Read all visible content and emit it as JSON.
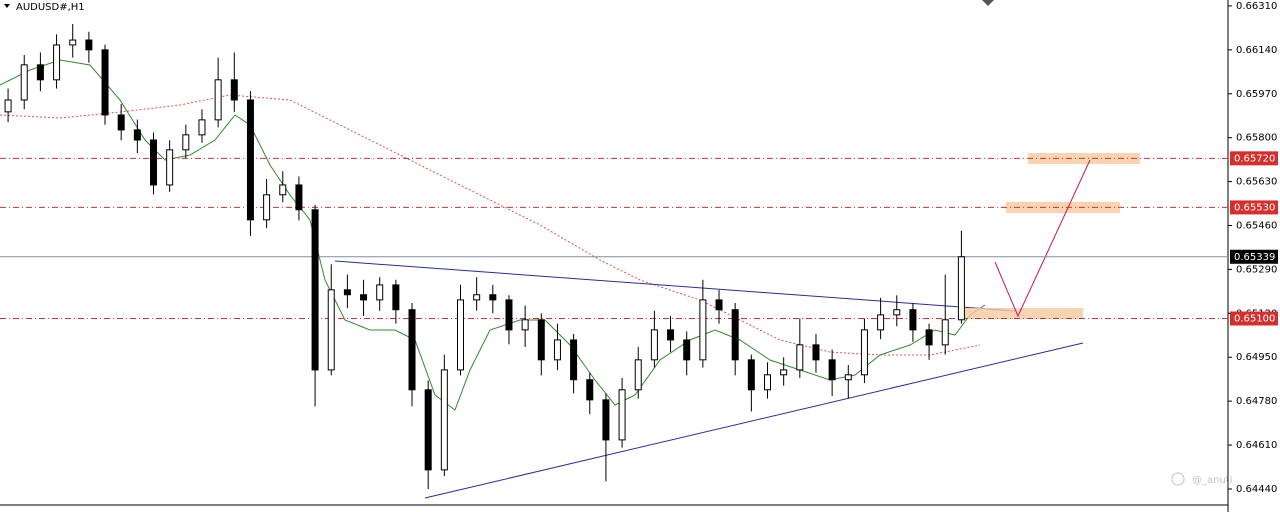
{
  "chart_data": {
    "type": "candlestick",
    "title": "AUDUSD#,H1",
    "watermark": "@_anuti",
    "color": "#000000",
    "open": [
      0.659,
      0.65946,
      0.66082,
      0.66024,
      0.66159,
      0.66178,
      0.6614,
      0.65888,
      0.6583,
      0.65791,
      0.65617,
      0.65753,
      0.65811,
      0.65869,
      0.66024,
      0.65946,
      0.65482,
      0.65579,
      0.65617,
      0.65521,
      0.64901,
      0.65211,
      0.65192,
      0.65172,
      0.6523,
      0.65134,
      0.64824,
      0.64514,
      0.64901,
      0.65172,
      0.65192,
      0.65172,
      0.65056,
      0.65095,
      0.6494,
      0.65017,
      0.64863,
      0.64785,
      0.6463,
      0.64824,
      0.6494,
      0.65056,
      0.65017,
      0.6494,
      0.65172,
      0.65134,
      0.6494,
      0.64824,
      0.64882,
      0.64901,
      0.64998,
      0.6494,
      0.64863,
      0.64882,
      0.65056,
      0.65114,
      0.65134,
      0.65056,
      0.64998,
      0.65095
    ],
    "high": [
      0.6599,
      0.6612,
      0.6613,
      0.662,
      0.6624,
      0.6621,
      0.6616,
      0.6593,
      0.6587,
      0.6582,
      0.6579,
      0.6585,
      0.6591,
      0.6611,
      0.6613,
      0.6598,
      0.6564,
      0.6567,
      0.6565,
      0.6554,
      0.6531,
      0.6527,
      0.6525,
      0.6526,
      0.6525,
      0.6516,
      0.6486,
      0.6496,
      0.6523,
      0.6526,
      0.6523,
      0.6519,
      0.6515,
      0.6512,
      0.6508,
      0.6504,
      0.6489,
      0.6481,
      0.6487,
      0.6499,
      0.6513,
      0.6511,
      0.6505,
      0.6525,
      0.6521,
      0.6516,
      0.6496,
      0.6493,
      0.6495,
      0.651,
      0.6504,
      0.6498,
      0.6492,
      0.651,
      0.6518,
      0.6519,
      0.6516,
      0.6508,
      0.6527,
      0.6544
    ],
    "low": [
      0.6586,
      0.6591,
      0.6598,
      0.6599,
      0.6611,
      0.6609,
      0.6585,
      0.6579,
      0.6574,
      0.6558,
      0.6559,
      0.6572,
      0.6578,
      0.6584,
      0.659,
      0.6542,
      0.6545,
      0.6555,
      0.6548,
      0.6476,
      0.6488,
      0.6514,
      0.6511,
      0.6513,
      0.6508,
      0.6476,
      0.6444,
      0.6449,
      0.6488,
      0.6513,
      0.6512,
      0.65,
      0.6499,
      0.6488,
      0.649,
      0.6481,
      0.6473,
      0.6447,
      0.646,
      0.6479,
      0.6491,
      0.6497,
      0.6488,
      0.6491,
      0.6508,
      0.6488,
      0.6474,
      0.6479,
      0.6484,
      0.6487,
      0.6489,
      0.648,
      0.6479,
      0.6485,
      0.6502,
      0.6507,
      0.6501,
      0.6494,
      0.6496,
      0.6508
    ],
    "close": [
      0.65946,
      0.66082,
      0.66024,
      0.66159,
      0.66178,
      0.6614,
      0.65888,
      0.6583,
      0.65791,
      0.65617,
      0.65753,
      0.65811,
      0.65869,
      0.66024,
      0.65946,
      0.65482,
      0.65579,
      0.65617,
      0.65521,
      0.64901,
      0.65211,
      0.65192,
      0.65172,
      0.6523,
      0.65134,
      0.64824,
      0.64514,
      0.64901,
      0.65172,
      0.65192,
      0.65172,
      0.65056,
      0.65095,
      0.6494,
      0.65017,
      0.64863,
      0.64785,
      0.6463,
      0.64824,
      0.6494,
      0.65056,
      0.65017,
      0.6494,
      0.65172,
      0.65134,
      0.6494,
      0.64824,
      0.64882,
      0.64901,
      0.64998,
      0.6494,
      0.64863,
      0.64882,
      0.65056,
      0.65114,
      0.65134,
      0.65056,
      0.64998,
      0.65095,
      0.65339
    ],
    "ylim": [
      0.64378,
      0.66333
    ],
    "yticks": [
      {
        "value": 0.6631,
        "label": "0.66310"
      },
      {
        "value": 0.6614,
        "label": "0.66140"
      },
      {
        "value": 0.6597,
        "label": "0.65970"
      },
      {
        "value": 0.658,
        "label": "0.65800"
      },
      {
        "value": 0.6563,
        "label": "0.65630"
      },
      {
        "value": 0.6546,
        "label": "0.65460"
      },
      {
        "value": 0.6529,
        "label": "0.65290"
      },
      {
        "value": 0.6512,
        "label": "0.65120"
      },
      {
        "value": 0.6495,
        "label": "0.64950"
      },
      {
        "value": 0.6478,
        "label": "0.64780"
      },
      {
        "value": 0.6461,
        "label": "0.64610"
      },
      {
        "value": 0.6444,
        "label": "0.64440"
      }
    ],
    "levels": [
      {
        "value": 0.6572,
        "label": "0.65720"
      },
      {
        "value": 0.6553,
        "label": "0.65530"
      },
      {
        "value": 0.651,
        "label": "0.65100"
      }
    ],
    "level_color": "#d32f2f",
    "current_price": {
      "value": 0.65339,
      "label": "0.65339"
    }
  }
}
